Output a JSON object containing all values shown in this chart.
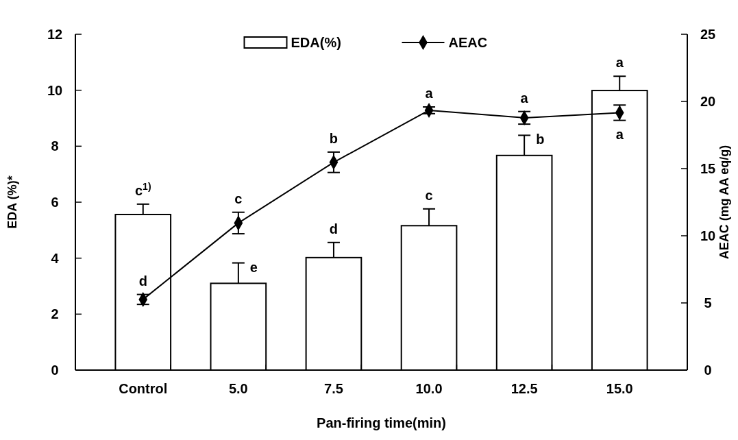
{
  "chart_data": {
    "type": "bar",
    "categories": [
      "Control",
      "5.0",
      "7.5",
      "10.0",
      "12.5",
      "15.0"
    ],
    "xlabel": "Pan-firing time(min)",
    "ylabel": "EDA (%)*",
    "y2label": "AEAC (mg AA eq/g)",
    "ylim": [
      0,
      12
    ],
    "yticks": [
      0,
      2,
      4,
      6,
      8,
      10,
      12
    ],
    "y2lim": [
      0,
      25
    ],
    "y2ticks": [
      0,
      5,
      10,
      15,
      20,
      25
    ],
    "legend": "top",
    "grid": false,
    "series": [
      {
        "name": "EDA(%)",
        "color": "#ffffff",
        "values": [
          5.56,
          3.1,
          4.02,
          5.16,
          7.67,
          9.99
        ],
        "errors": [
          [
            5.56,
            5.93
          ],
          [
            3.1,
            3.83
          ],
          [
            4.02,
            4.56
          ],
          [
            5.16,
            5.76
          ],
          [
            7.67,
            8.39
          ],
          [
            9.99,
            10.5
          ]
        ]
      },
      {
        "name": "AEAC",
        "type": "line",
        "axis": "y2",
        "color": "#000000",
        "marker": "diamond",
        "values": [
          5.26,
          10.95,
          15.47,
          19.34,
          18.78,
          19.16
        ],
        "errors": [
          0.37,
          0.8,
          0.76,
          0.25,
          0.47,
          0.57
        ]
      }
    ],
    "annotations": [
      "c$^{1)}$",
      "d",
      "e",
      "c",
      "d",
      "b",
      "c",
      "a",
      "b",
      "a",
      "a",
      "a"
    ]
  }
}
